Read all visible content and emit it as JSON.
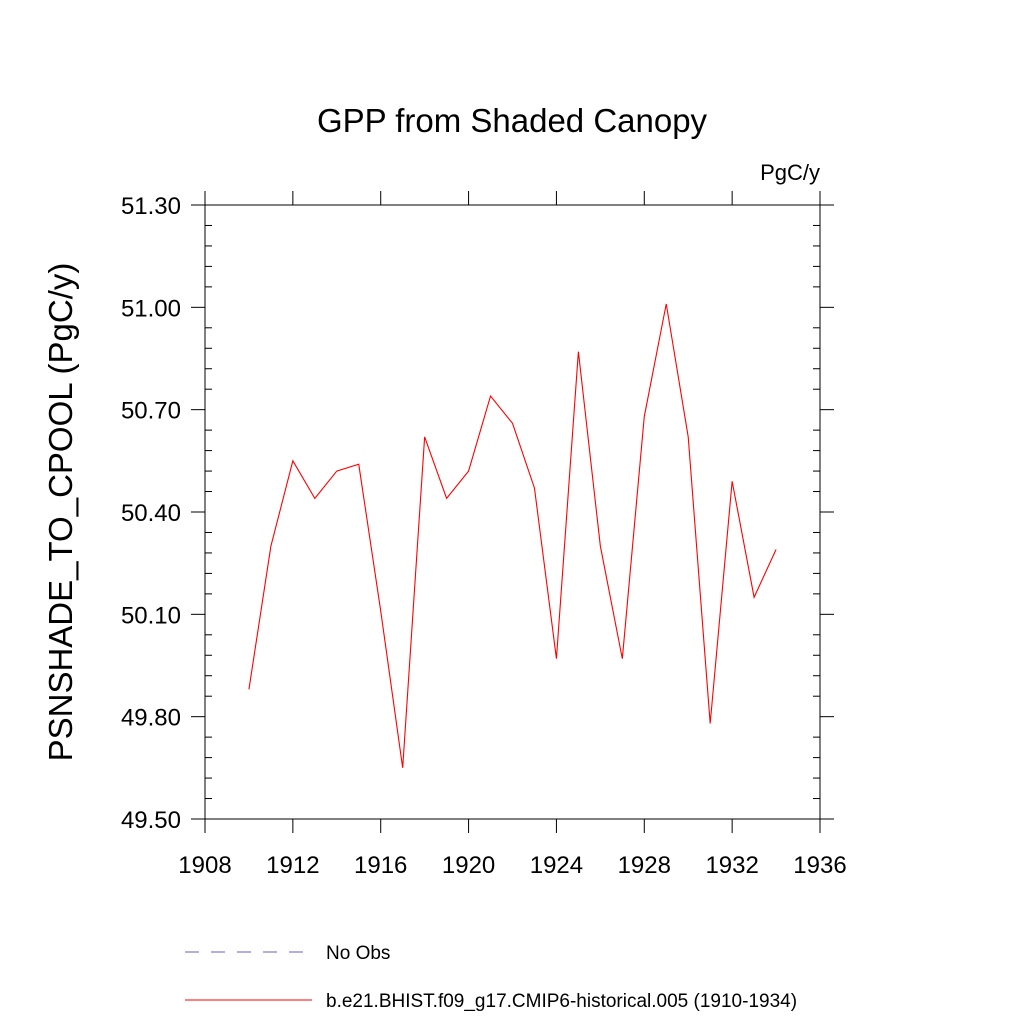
{
  "chart_data": {
    "type": "line",
    "title": "GPP from Shaded Canopy",
    "units": "PgC/y",
    "ylabel": "PSNSHADE_TO_CPOOL  (PgC/y)",
    "xlabel": "",
    "xlim": [
      1908,
      1936
    ],
    "ylim": [
      49.5,
      51.3
    ],
    "x_ticks": [
      1908,
      1912,
      1916,
      1920,
      1924,
      1928,
      1932,
      1936
    ],
    "x_tick_labels": [
      "1908",
      "1912",
      "1916",
      "1920",
      "1924",
      "1928",
      "1932",
      "1936"
    ],
    "y_ticks": [
      49.5,
      49.8,
      50.1,
      50.4,
      50.7,
      51.0,
      51.3
    ],
    "y_tick_labels": [
      "49.50",
      "49.80",
      "50.10",
      "50.40",
      "50.70",
      "51.00",
      "51.30"
    ],
    "grid": false,
    "legend_position": "bottom",
    "series": [
      {
        "name": "No Obs",
        "color": "#6a5acd",
        "dash": true,
        "x": [],
        "values": []
      },
      {
        "name": "b.e21.BHIST.f09_g17.CMIP6-historical.005 (1910-1934)",
        "color": "#ff0000",
        "dash": false,
        "x": [
          1910,
          1911,
          1912,
          1913,
          1914,
          1915,
          1916,
          1917,
          1918,
          1919,
          1920,
          1921,
          1922,
          1923,
          1924,
          1925,
          1926,
          1927,
          1928,
          1929,
          1930,
          1931,
          1932,
          1933,
          1934
        ],
        "values": [
          49.88,
          50.3,
          50.55,
          50.44,
          50.52,
          50.54,
          50.11,
          49.65,
          50.62,
          50.44,
          50.52,
          50.74,
          50.66,
          50.47,
          49.97,
          50.87,
          50.3,
          49.97,
          50.68,
          51.01,
          50.62,
          49.78,
          50.49,
          50.15,
          50.29
        ]
      }
    ]
  }
}
